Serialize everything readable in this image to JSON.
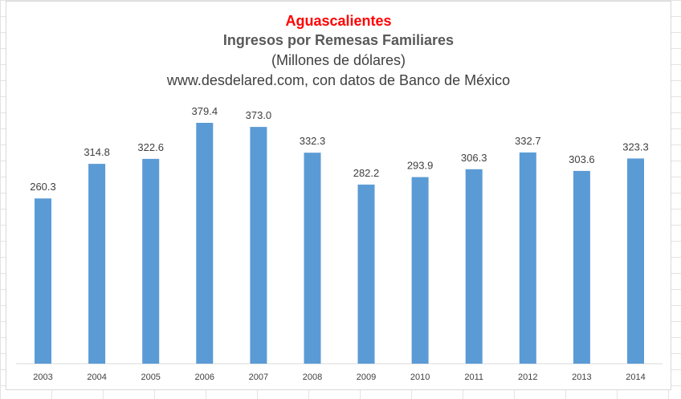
{
  "chart_data": {
    "type": "bar",
    "title": "Aguascalientes",
    "subtitle": "Ingresos por Remesas Familiares",
    "unit_line": "(Millones de dólares)",
    "source_line": "www.desdelared.com, con datos de Banco de México",
    "categories": [
      "2003",
      "2004",
      "2005",
      "2006",
      "2007",
      "2008",
      "2009",
      "2010",
      "2011",
      "2012",
      "2013",
      "2014"
    ],
    "values": [
      260.3,
      314.8,
      322.6,
      379.4,
      373.0,
      332.3,
      282.2,
      293.9,
      306.3,
      332.7,
      303.6,
      323.3
    ],
    "value_labels": [
      "260.3",
      "314.8",
      "322.6",
      "379.4",
      "373.0",
      "332.3",
      "282.2",
      "293.9",
      "306.3",
      "332.7",
      "303.6",
      "323.3"
    ],
    "xlabel": "",
    "ylabel": "",
    "ylim": [
      0,
      400
    ],
    "grid": false,
    "legend": "none",
    "bar_color": "#5b9bd5",
    "title_color": "#ff0000"
  }
}
